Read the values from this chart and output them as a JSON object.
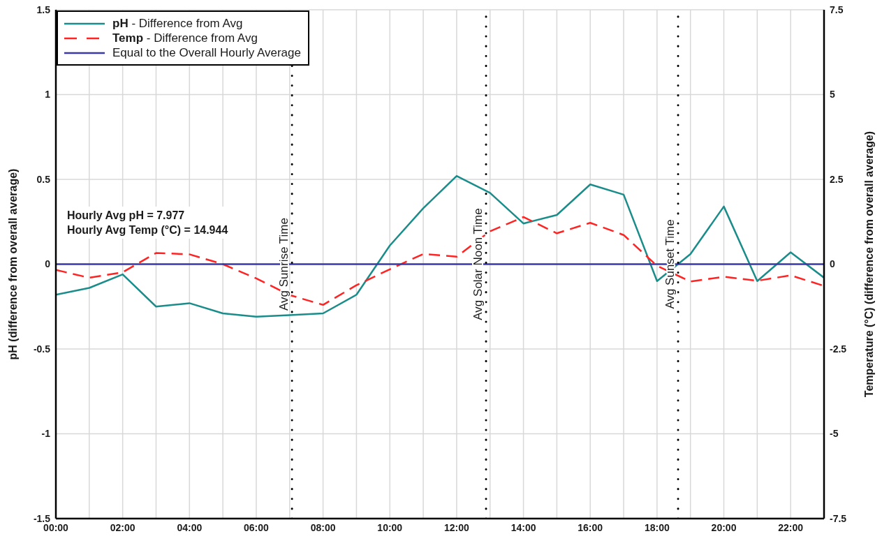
{
  "chart_data": {
    "type": "line",
    "ylabel": "pH (difference from overall average)",
    "y2label": "Temperature (°C) (difference from overall average)",
    "x": [
      0,
      1,
      2,
      3,
      4,
      5,
      6,
      7,
      8,
      9,
      10,
      11,
      12,
      13,
      14,
      15,
      16,
      17,
      18,
      19,
      20,
      21,
      22,
      23
    ],
    "series": [
      {
        "name": "pH - Difference from Avg",
        "color": "#1a8c8a",
        "line_style": "solid",
        "values": [
          -0.18,
          -0.14,
          -0.06,
          -0.25,
          -0.23,
          -0.29,
          -0.31,
          -0.3,
          -0.29,
          -0.18,
          0.11,
          0.33,
          0.52,
          0.42,
          0.24,
          0.29,
          0.47,
          0.41,
          -0.1,
          0.06,
          0.34,
          -0.1,
          0.07,
          -0.08
        ]
      },
      {
        "name": "Temp - Difference from Avg",
        "color": "#ff2424",
        "line_style": "dashed",
        "axis": "y2",
        "values": [
          -0.17,
          -0.4,
          -0.24,
          0.33,
          0.29,
          0.0,
          -0.42,
          -0.91,
          -1.2,
          -0.62,
          -0.15,
          0.3,
          0.22,
          0.97,
          1.39,
          0.91,
          1.22,
          0.86,
          -0.05,
          -0.51,
          -0.37,
          -0.49,
          -0.33,
          -0.64
        ]
      },
      {
        "name": "Equal to the Overall Hourly Average",
        "color": "#3a3aa6",
        "line_style": "solid",
        "values": [
          0,
          0,
          0,
          0,
          0,
          0,
          0,
          0,
          0,
          0,
          0,
          0,
          0,
          0,
          0,
          0,
          0,
          0,
          0,
          0,
          0,
          0,
          0,
          0
        ]
      }
    ],
    "xlim": [
      0,
      23
    ],
    "xticks": [
      {
        "value": 0,
        "label": "00:00"
      },
      {
        "value": 1,
        "label": null
      },
      {
        "value": 2,
        "label": "02:00"
      },
      {
        "value": 3,
        "label": null
      },
      {
        "value": 4,
        "label": "04:00"
      },
      {
        "value": 5,
        "label": null
      },
      {
        "value": 6,
        "label": "06:00"
      },
      {
        "value": 7,
        "label": null
      },
      {
        "value": 8,
        "label": "08:00"
      },
      {
        "value": 9,
        "label": null
      },
      {
        "value": 10,
        "label": "10:00"
      },
      {
        "value": 11,
        "label": null
      },
      {
        "value": 12,
        "label": "12:00"
      },
      {
        "value": 13,
        "label": null
      },
      {
        "value": 14,
        "label": "14:00"
      },
      {
        "value": 15,
        "label": null
      },
      {
        "value": 16,
        "label": "16:00"
      },
      {
        "value": 17,
        "label": null
      },
      {
        "value": 18,
        "label": "18:00"
      },
      {
        "value": 19,
        "label": null
      },
      {
        "value": 20,
        "label": "20:00"
      },
      {
        "value": 21,
        "label": null
      },
      {
        "value": 22,
        "label": "22:00"
      },
      {
        "value": 23,
        "label": null
      }
    ],
    "ylim": [
      -1.5,
      1.5
    ],
    "yticks": [
      -1.5,
      -1,
      -0.5,
      0,
      0.5,
      1,
      1.5
    ],
    "y2lim": [
      -7.5,
      7.5
    ],
    "y2ticks": [
      -7.5,
      -5,
      -2.5,
      0,
      2.5,
      5,
      7.5
    ],
    "grid": true,
    "legend": "top left",
    "marker": "none",
    "ref_lines": [
      {
        "axis": "x",
        "value": 7.07,
        "label": "Avg Sunrise Time",
        "color": "#000000",
        "line_style": "dotted"
      },
      {
        "axis": "x",
        "value": 12.88,
        "label": "Avg Solar Noon Time",
        "color": "#000000",
        "line_style": "dotted"
      },
      {
        "axis": "x",
        "value": 18.63,
        "label": "Avg Sunset Time",
        "color": "#000000",
        "line_style": "dotted"
      }
    ],
    "annotations": [
      "Hourly Avg pH = 7.977",
      "Hourly Avg Temp (°C) = 14.944"
    ]
  }
}
